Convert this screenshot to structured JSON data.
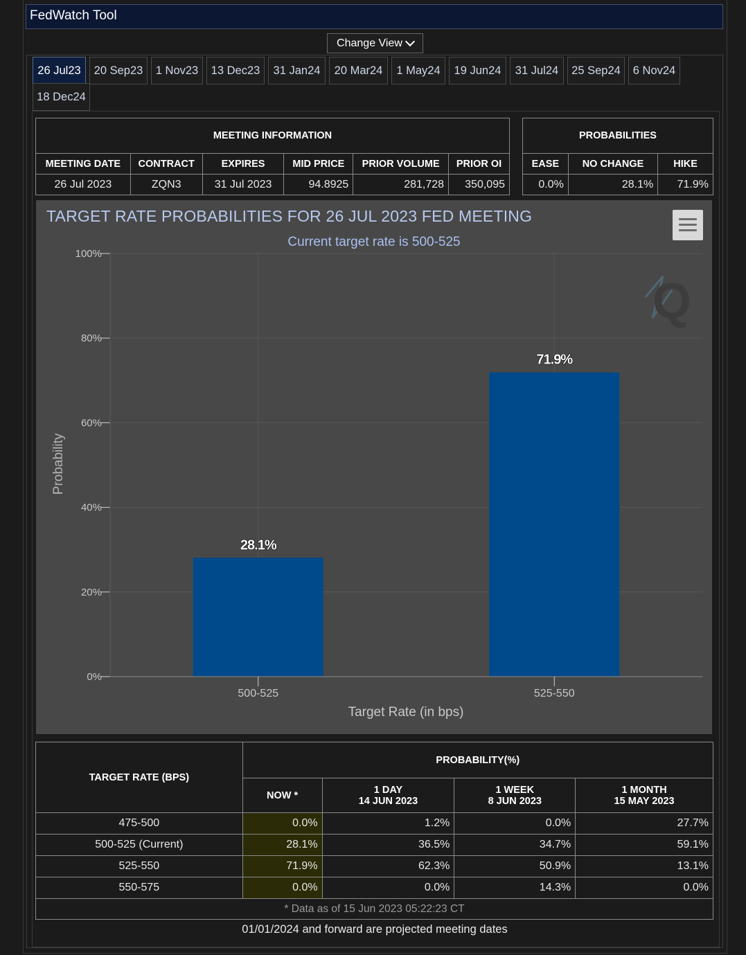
{
  "app_title": "FedWatch Tool",
  "change_view_label": "Change View",
  "tabs": [
    "26 Jul23",
    "20 Sep23",
    "1 Nov23",
    "13 Dec23",
    "31 Jan24",
    "20 Mar24",
    "1 May24",
    "19 Jun24",
    "31 Jul24",
    "25 Sep24",
    "6 Nov24",
    "18 Dec24"
  ],
  "active_tab": "26 Jul23",
  "meeting_info": {
    "header": "MEETING INFORMATION",
    "columns": [
      "MEETING DATE",
      "CONTRACT",
      "EXPIRES",
      "MID PRICE",
      "PRIOR VOLUME",
      "PRIOR OI"
    ],
    "row": [
      "26 Jul 2023",
      "ZQN3",
      "31 Jul 2023",
      "94.8925",
      "281,728",
      "350,095"
    ]
  },
  "probabilities": {
    "header": "PROBABILITIES",
    "columns": [
      "EASE",
      "NO CHANGE",
      "HIKE"
    ],
    "row": [
      "0.0%",
      "28.1%",
      "71.9%"
    ]
  },
  "chart_data": {
    "type": "bar",
    "title": "TARGET RATE PROBABILITIES FOR 26 JUL 2023 FED MEETING",
    "subtitle": "Current target rate is 500-525",
    "categories": [
      "500-525",
      "525-550"
    ],
    "values": [
      28.1,
      71.9
    ],
    "data_labels": [
      "28.1%",
      "71.9%"
    ],
    "xlabel": "Target Rate (in bps)",
    "ylabel": "Probability",
    "ylim": [
      0,
      100
    ],
    "yticks": [
      "0%",
      "20%",
      "40%",
      "60%",
      "80%",
      "100%"
    ],
    "grid": true,
    "bar_color": "#00498a",
    "watermark": "Q"
  },
  "prob_table": {
    "target_header": "TARGET RATE (BPS)",
    "prob_header": "PROBABILITY(%)",
    "col_now": "NOW *",
    "col_1day": [
      "1 DAY",
      "14 JUN 2023"
    ],
    "col_1week": [
      "1 WEEK",
      "8 JUN 2023"
    ],
    "col_1month": [
      "1 MONTH",
      "15 MAY 2023"
    ],
    "rows": [
      [
        "475-500",
        "0.0%",
        "1.2%",
        "0.0%",
        "27.7%"
      ],
      [
        "500-525 (Current)",
        "28.1%",
        "36.5%",
        "34.7%",
        "59.1%"
      ],
      [
        "525-550",
        "71.9%",
        "62.3%",
        "50.9%",
        "13.1%"
      ],
      [
        "550-575",
        "0.0%",
        "0.0%",
        "14.3%",
        "0.0%"
      ]
    ],
    "footnote": "* Data as of 15 Jun 2023 05:22:23 CT"
  },
  "footer_note": "01/01/2024 and forward are projected meeting dates"
}
